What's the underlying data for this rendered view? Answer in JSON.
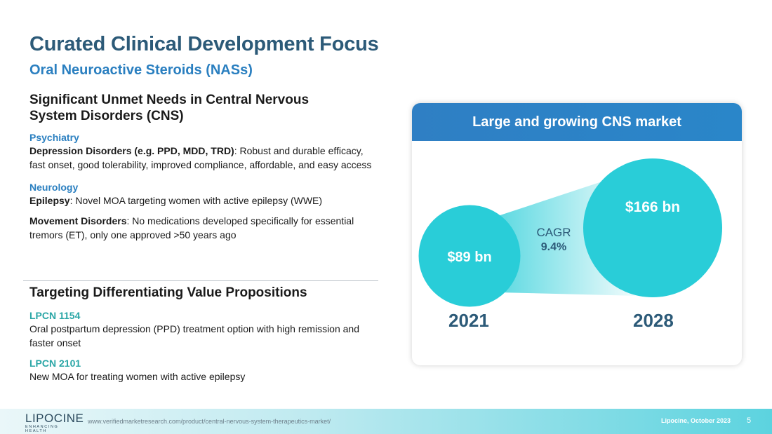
{
  "header": {
    "title": "Curated Clinical Development Focus",
    "subtitle": "Oral Neuroactive Steroids (NASs)"
  },
  "section1": {
    "heading_line1": "Significant Unmet Needs in Central Nervous",
    "heading_line2": "System Disorders (CNS)",
    "psychiatry": {
      "category": "Psychiatry",
      "bold": "Depression Disorders (e.g. PPD, MDD, TRD)",
      "text": ": Robust and durable efficacy, fast onset, good tolerability, improved compliance, affordable, and easy access"
    },
    "neurology": {
      "category": "Neurology",
      "epilepsy_bold": "Epilepsy",
      "epilepsy_text": ": Novel MOA targeting women with active epilepsy (WWE)",
      "movement_bold": "Movement Disorders",
      "movement_text": ": No medications developed specifically for essential tremors (ET), only one approved >50 years ago"
    }
  },
  "section2": {
    "heading": "Targeting Differentiating Value Propositions",
    "items": [
      {
        "name": "LPCN 1154",
        "text": "Oral postpartum depression (PPD) treatment option with high remission and faster onset"
      },
      {
        "name": "LPCN 2101",
        "text": "New MOA for treating women with active epilepsy"
      }
    ]
  },
  "card": {
    "title": "Large and growing CNS market",
    "cagr_label": "CAGR",
    "cagr_value": "9.4%"
  },
  "chart_data": {
    "type": "bubble",
    "title": "Large and growing CNS market",
    "categories": [
      "2021",
      "2028"
    ],
    "values": [
      89,
      166
    ],
    "value_labels": [
      "$89 bn",
      "$166 bn"
    ],
    "unit": "$ bn",
    "annotation": "CAGR 9.4%"
  },
  "footer": {
    "logo_name": "LIPOCINE",
    "logo_tagline": "ENHANCING HEALTH",
    "source": "www.verifiedmarketresearch.com/product/central-nervous-system-therapeutics-market/",
    "right_text": "Lipocine, October 2023",
    "page_number": "5"
  },
  "colors": {
    "title": "#2c5a78",
    "subtitle": "#2a7fc0",
    "accent_green": "#2aa6a6",
    "bubble": "#29cdd8",
    "card_header": "#2f7fc4"
  }
}
